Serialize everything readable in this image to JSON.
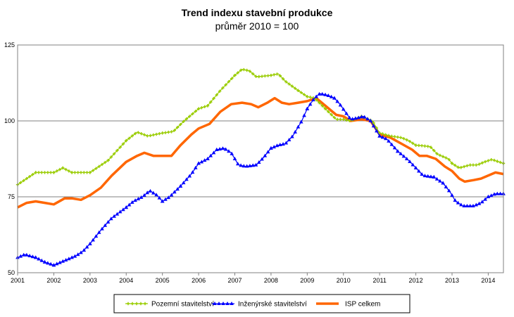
{
  "chart_data": {
    "type": "line",
    "title": "Trend indexu stavební produkce",
    "subtitle": "průměr 2010 = 100",
    "xlabel": "",
    "ylabel": "",
    "xlim": [
      2001,
      2014.42
    ],
    "ylim": [
      50,
      125
    ],
    "yticks": [
      "50",
      "75",
      "100",
      "125"
    ],
    "xticks": [
      "2001",
      "2002",
      "2003",
      "2004",
      "2005",
      "2006",
      "2007",
      "2008",
      "2009",
      "2010",
      "2011",
      "2012",
      "2013",
      "2014"
    ],
    "grid": "horizontal",
    "legend_position": "bottom",
    "series": [
      {
        "name": "Pozemní stavitelství",
        "color": "#99cc00",
        "marker": "cross",
        "points": [
          [
            2001.0,
            79.0
          ],
          [
            2001.5,
            83.0
          ],
          [
            2002.0,
            83.0
          ],
          [
            2002.25,
            84.5
          ],
          [
            2002.5,
            83.0
          ],
          [
            2003.0,
            83.0
          ],
          [
            2003.5,
            87.0
          ],
          [
            2004.0,
            93.5
          ],
          [
            2004.3,
            96.3
          ],
          [
            2004.6,
            95.0
          ],
          [
            2005.0,
            96.0
          ],
          [
            2005.3,
            96.5
          ],
          [
            2005.6,
            100.0
          ],
          [
            2006.0,
            104.0
          ],
          [
            2006.25,
            105.0
          ],
          [
            2006.6,
            110.0
          ],
          [
            2007.0,
            115.0
          ],
          [
            2007.2,
            117.0
          ],
          [
            2007.4,
            116.5
          ],
          [
            2007.6,
            114.5
          ],
          [
            2008.0,
            115.0
          ],
          [
            2008.2,
            115.5
          ],
          [
            2008.4,
            113.0
          ],
          [
            2008.75,
            110.0
          ],
          [
            2009.0,
            108.0
          ],
          [
            2009.2,
            107.5
          ],
          [
            2009.5,
            104.0
          ],
          [
            2009.8,
            100.5
          ],
          [
            2010.0,
            100.5
          ],
          [
            2010.2,
            100.0
          ],
          [
            2010.5,
            101.5
          ],
          [
            2010.8,
            100.0
          ],
          [
            2011.0,
            96.0
          ],
          [
            2011.3,
            95.0
          ],
          [
            2011.6,
            94.5
          ],
          [
            2011.8,
            93.5
          ],
          [
            2012.0,
            92.0
          ],
          [
            2012.2,
            91.8
          ],
          [
            2012.4,
            91.5
          ],
          [
            2012.6,
            89.0
          ],
          [
            2012.9,
            87.5
          ],
          [
            2013.0,
            86.0
          ],
          [
            2013.2,
            84.5
          ],
          [
            2013.5,
            85.5
          ],
          [
            2013.7,
            85.5
          ],
          [
            2013.9,
            86.5
          ],
          [
            2014.1,
            87.3
          ],
          [
            2014.42,
            86.0
          ]
        ]
      },
      {
        "name": "Inženýrské stavitelství",
        "color": "#0000ff",
        "marker": "triangle",
        "points": [
          [
            2001.0,
            55.0
          ],
          [
            2001.2,
            56.0
          ],
          [
            2001.5,
            55.0
          ],
          [
            2001.75,
            53.5
          ],
          [
            2002.0,
            52.5
          ],
          [
            2002.3,
            54.0
          ],
          [
            2002.6,
            55.5
          ],
          [
            2002.8,
            57.0
          ],
          [
            2003.0,
            59.5
          ],
          [
            2003.3,
            64.0
          ],
          [
            2003.6,
            68.0
          ],
          [
            2004.0,
            71.5
          ],
          [
            2004.2,
            73.5
          ],
          [
            2004.45,
            75.0
          ],
          [
            2004.65,
            77.0
          ],
          [
            2004.85,
            75.5
          ],
          [
            2005.0,
            73.5
          ],
          [
            2005.2,
            75.0
          ],
          [
            2005.5,
            78.5
          ],
          [
            2005.8,
            82.5
          ],
          [
            2006.0,
            86.0
          ],
          [
            2006.25,
            87.5
          ],
          [
            2006.5,
            90.5
          ],
          [
            2006.7,
            91.0
          ],
          [
            2006.9,
            89.5
          ],
          [
            2007.1,
            85.5
          ],
          [
            2007.3,
            85.0
          ],
          [
            2007.6,
            85.5
          ],
          [
            2007.8,
            88.0
          ],
          [
            2008.0,
            91.0
          ],
          [
            2008.2,
            92.0
          ],
          [
            2008.4,
            92.5
          ],
          [
            2008.6,
            95.0
          ],
          [
            2008.85,
            100.0
          ],
          [
            2009.0,
            104.0
          ],
          [
            2009.2,
            107.5
          ],
          [
            2009.35,
            109.0
          ],
          [
            2009.55,
            108.5
          ],
          [
            2009.75,
            107.5
          ],
          [
            2009.9,
            105.5
          ],
          [
            2010.05,
            103.0
          ],
          [
            2010.2,
            100.5
          ],
          [
            2010.4,
            101.0
          ],
          [
            2010.55,
            101.5
          ],
          [
            2010.75,
            100.0
          ],
          [
            2011.0,
            95.0
          ],
          [
            2011.2,
            94.0
          ],
          [
            2011.5,
            90.0
          ],
          [
            2011.8,
            87.0
          ],
          [
            2012.0,
            84.5
          ],
          [
            2012.2,
            82.0
          ],
          [
            2012.5,
            81.5
          ],
          [
            2012.75,
            79.5
          ],
          [
            2012.95,
            76.5
          ],
          [
            2013.1,
            73.5
          ],
          [
            2013.3,
            72.0
          ],
          [
            2013.6,
            72.0
          ],
          [
            2013.8,
            73.0
          ],
          [
            2014.0,
            75.0
          ],
          [
            2014.2,
            76.0
          ],
          [
            2014.42,
            76.0
          ]
        ]
      },
      {
        "name": "ISP celkem",
        "color": "#ff6600",
        "marker": "none",
        "points": [
          [
            2001.0,
            71.5
          ],
          [
            2001.25,
            73.0
          ],
          [
            2001.5,
            73.5
          ],
          [
            2001.75,
            73.0
          ],
          [
            2002.0,
            72.5
          ],
          [
            2002.3,
            74.5
          ],
          [
            2002.5,
            74.5
          ],
          [
            2002.75,
            74.0
          ],
          [
            2003.0,
            75.5
          ],
          [
            2003.3,
            78.0
          ],
          [
            2003.6,
            82.0
          ],
          [
            2004.0,
            86.5
          ],
          [
            2004.3,
            88.5
          ],
          [
            2004.5,
            89.5
          ],
          [
            2004.75,
            88.5
          ],
          [
            2005.0,
            88.5
          ],
          [
            2005.25,
            88.5
          ],
          [
            2005.5,
            92.0
          ],
          [
            2005.8,
            95.5
          ],
          [
            2006.0,
            97.5
          ],
          [
            2006.3,
            99.0
          ],
          [
            2006.6,
            103.0
          ],
          [
            2006.9,
            105.5
          ],
          [
            2007.2,
            106.0
          ],
          [
            2007.45,
            105.5
          ],
          [
            2007.65,
            104.5
          ],
          [
            2007.9,
            106.0
          ],
          [
            2008.1,
            107.5
          ],
          [
            2008.3,
            106.0
          ],
          [
            2008.5,
            105.5
          ],
          [
            2008.75,
            106.0
          ],
          [
            2009.0,
            106.5
          ],
          [
            2009.25,
            107.5
          ],
          [
            2009.5,
            105.0
          ],
          [
            2009.8,
            102.0
          ],
          [
            2010.0,
            101.5
          ],
          [
            2010.2,
            100.0
          ],
          [
            2010.5,
            100.5
          ],
          [
            2010.75,
            100.0
          ],
          [
            2011.0,
            95.5
          ],
          [
            2011.3,
            94.5
          ],
          [
            2011.6,
            92.5
          ],
          [
            2011.9,
            90.5
          ],
          [
            2012.1,
            88.5
          ],
          [
            2012.3,
            88.5
          ],
          [
            2012.55,
            87.5
          ],
          [
            2012.8,
            85.0
          ],
          [
            2013.0,
            83.5
          ],
          [
            2013.2,
            81.0
          ],
          [
            2013.35,
            80.0
          ],
          [
            2013.6,
            80.5
          ],
          [
            2013.8,
            81.0
          ],
          [
            2014.0,
            82.0
          ],
          [
            2014.2,
            83.0
          ],
          [
            2014.42,
            82.5
          ]
        ]
      }
    ]
  }
}
